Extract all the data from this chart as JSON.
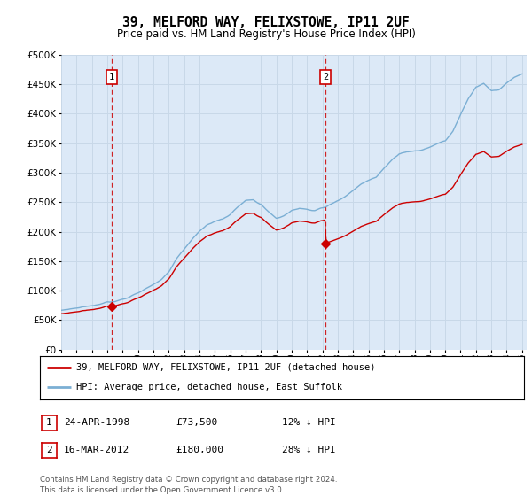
{
  "title": "39, MELFORD WAY, FELIXSTOWE, IP11 2UF",
  "subtitle": "Price paid vs. HM Land Registry's House Price Index (HPI)",
  "fig_bg_color": "#ffffff",
  "plot_bg_color": "#dce9f7",
  "hpi_color": "#7bafd4",
  "price_color": "#cc0000",
  "sale1_date_label": "24-APR-1998",
  "sale1_price": 73500,
  "sale1_x": 1998.29,
  "sale2_date_label": "16-MAR-2012",
  "sale2_price": 180000,
  "sale2_x": 2012.21,
  "legend_label_price": "39, MELFORD WAY, FELIXSTOWE, IP11 2UF (detached house)",
  "legend_label_hpi": "HPI: Average price, detached house, East Suffolk",
  "footer": "Contains HM Land Registry data © Crown copyright and database right 2024.\nThis data is licensed under the Open Government Licence v3.0.",
  "ylim": [
    0,
    500000
  ],
  "yticks": [
    0,
    50000,
    100000,
    150000,
    200000,
    250000,
    300000,
    350000,
    400000,
    450000,
    500000
  ],
  "grid_color": "#c8d8e8",
  "vline_color": "#cc0000"
}
